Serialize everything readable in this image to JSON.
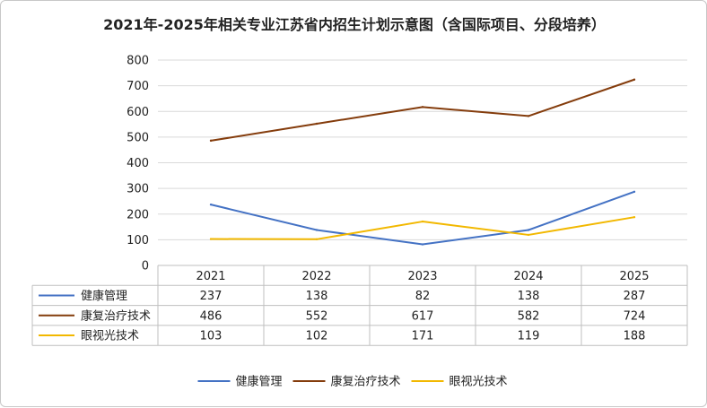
{
  "chart_data": {
    "type": "line",
    "title": "2021年-2025年相关专业江苏省内招生计划示意图（含国际项目、分段培养）",
    "categories": [
      "2021",
      "2022",
      "2023",
      "2024",
      "2025"
    ],
    "ylim": [
      0,
      800
    ],
    "yticks": [
      "0",
      "100",
      "200",
      "300",
      "400",
      "500",
      "600",
      "700",
      "800"
    ],
    "grid": true,
    "legend_position": "bottom",
    "data_table": true,
    "series": [
      {
        "name": "健康管理",
        "values": [
          237,
          138,
          82,
          138,
          287
        ],
        "color": "#4472C4"
      },
      {
        "name": "康复治疗技术",
        "values": [
          486,
          552,
          617,
          582,
          724
        ],
        "color": "#843C0C"
      },
      {
        "name": "眼视光技术",
        "values": [
          103,
          102,
          171,
          119,
          188
        ],
        "color": "#F2B800"
      }
    ]
  }
}
